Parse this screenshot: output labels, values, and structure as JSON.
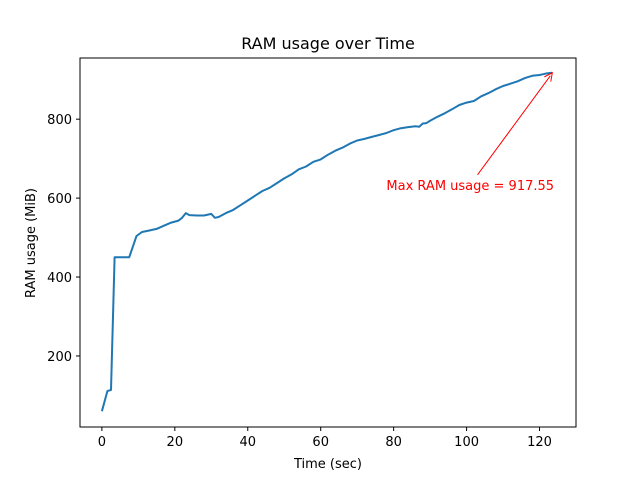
{
  "chart_data": {
    "type": "line",
    "title": "RAM usage over Time",
    "xlabel": "Time (sec)",
    "ylabel": "RAM usage (MiB)",
    "xlim": [
      -6,
      130
    ],
    "ylim": [
      20,
      955
    ],
    "xticks": [
      0,
      20,
      40,
      60,
      80,
      100,
      120
    ],
    "yticks": [
      200,
      400,
      600,
      800
    ],
    "grid": false,
    "line_color": "#1f77b4",
    "series": [
      {
        "x": [
          0,
          1.5,
          2.5,
          3.5,
          5,
          7.5,
          9.5,
          11,
          13,
          15,
          17,
          19,
          21,
          22,
          23,
          24,
          26,
          28,
          30,
          31,
          32,
          34,
          36,
          38,
          40,
          42,
          44,
          46,
          48,
          50,
          52,
          54,
          56,
          58,
          60,
          62,
          64,
          66,
          68,
          70,
          72,
          74,
          76,
          78,
          80,
          82,
          84,
          86,
          87,
          88,
          89,
          90,
          92,
          94,
          96,
          98,
          100,
          102,
          104,
          106,
          108,
          110,
          112,
          114,
          116,
          118,
          120,
          121,
          122,
          123.5
        ],
        "y": [
          60,
          111,
          114,
          450,
          450,
          450,
          504,
          514,
          518,
          522,
          530,
          538,
          543,
          550,
          562,
          557,
          556,
          556,
          560,
          550,
          552,
          562,
          570,
          582,
          594,
          606,
          618,
          626,
          638,
          650,
          660,
          673,
          680,
          692,
          698,
          710,
          720,
          728,
          738,
          746,
          750,
          755,
          760,
          765,
          772,
          777,
          780,
          782,
          781,
          789,
          790,
          796,
          806,
          815,
          825,
          836,
          842,
          846,
          858,
          866,
          876,
          884,
          890,
          896,
          904,
          910,
          912,
          914,
          916,
          917.55
        ]
      }
    ],
    "annotation": {
      "text": "Max RAM usage = 917.55",
      "color": "#ff0000",
      "point": [
        123.5,
        917.55
      ],
      "text_position": [
        101,
        621
      ]
    }
  }
}
